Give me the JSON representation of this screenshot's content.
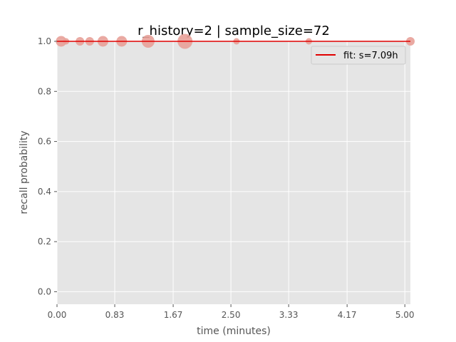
{
  "chart_data": {
    "type": "scatter",
    "title": "r_history=2 | sample_size=72",
    "xlabel": "time (minutes)",
    "ylabel": "recall probability",
    "xlim": [
      0,
      5.08
    ],
    "ylim": [
      -0.05,
      1.0
    ],
    "x_ticks": [
      0.0,
      0.83,
      1.67,
      2.5,
      3.33,
      4.17,
      5.0
    ],
    "x_tick_labels": [
      "0.00",
      "0.83",
      "1.67",
      "2.50",
      "3.33",
      "4.17",
      "5.00"
    ],
    "y_ticks": [
      0.0,
      0.2,
      0.4,
      0.6,
      0.8,
      1.0
    ],
    "y_tick_labels": [
      "0.0",
      "0.2",
      "0.4",
      "0.6",
      "0.8",
      "1.0"
    ],
    "grid": true,
    "legend": {
      "position": "top-right",
      "entries": [
        "fit: s=7.09h"
      ]
    },
    "fit_line": {
      "name": "fit: s=7.09h",
      "color": "#e00000",
      "values": [
        1.0,
        1.0
      ]
    },
    "points": {
      "color": "#e8a098",
      "x": [
        0.06,
        0.13,
        0.33,
        0.47,
        0.66,
        0.93,
        1.31,
        1.84,
        2.58,
        3.62,
        5.08
      ],
      "y": [
        1.0,
        1.0,
        1.0,
        1.0,
        1.0,
        1.0,
        1.0,
        1.0,
        1.0,
        1.0,
        1.0
      ],
      "weight": [
        3,
        1,
        2,
        2,
        3,
        3,
        4,
        5,
        1,
        1,
        2
      ]
    }
  }
}
